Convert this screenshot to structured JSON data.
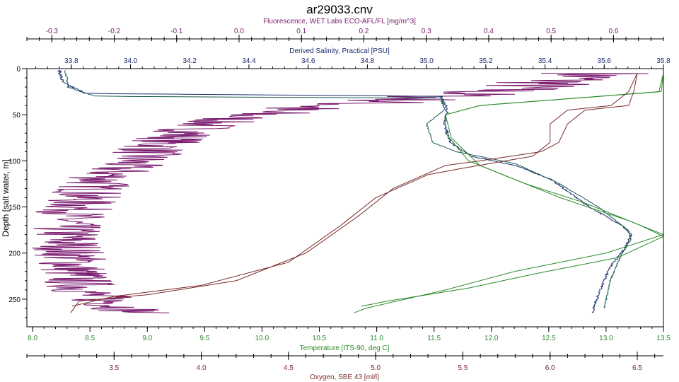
{
  "chart_data": {
    "type": "line",
    "title": "ar29033.cnv",
    "grid": false,
    "y_axis": {
      "label": "Depth [salt water, m]",
      "range": [
        0,
        280
      ],
      "ticks": [
        0,
        50,
        100,
        150,
        200,
        250
      ],
      "inverted": true
    },
    "x_axes": [
      {
        "id": "fluorescence",
        "label": "Fluorescence, WET Labs ECO-AFL/FL [mg/m^3]",
        "position": "top-1",
        "color": "#7a1a6e",
        "range": [
          -0.34,
          0.68
        ],
        "ticks": [
          -0.3,
          -0.2,
          -0.1,
          0.0,
          0.1,
          0.2,
          0.3,
          0.4,
          0.5,
          0.6
        ],
        "tick_labels": [
          "-0.3",
          "-0.2",
          "-0.1",
          "0.0",
          "0.1",
          "0.2",
          "0.3",
          "0.4",
          "0.5",
          "0.6"
        ]
      },
      {
        "id": "salinity",
        "label": "Derived Salinity, Practical [PSU]",
        "position": "top-2",
        "color": "#1a2a6e",
        "range": [
          33.65,
          35.8
        ],
        "ticks": [
          33.8,
          34.0,
          34.2,
          34.4,
          34.6,
          34.8,
          35.0,
          35.2,
          35.4,
          35.6,
          35.8
        ],
        "tick_labels": [
          "33.8",
          "34.0",
          "34.2",
          "34.4",
          "34.6",
          "34.8",
          "35.0",
          "35.2",
          "35.4",
          "35.6",
          "35.8"
        ]
      },
      {
        "id": "temperature",
        "label": "Temperature [ITS-90, deg C]",
        "position": "bottom-1",
        "color": "#2a8a2a",
        "range": [
          7.95,
          13.5
        ],
        "ticks": [
          8.0,
          8.5,
          9.0,
          9.5,
          10.0,
          10.5,
          11.0,
          11.5,
          12.0,
          12.5,
          13.0,
          13.5
        ],
        "tick_labels": [
          "8.0",
          "8.5",
          "9.0",
          "9.5",
          "10.0",
          "10.5",
          "11.0",
          "11.5",
          "12.0",
          "12.5",
          "13.0",
          "13.5"
        ]
      },
      {
        "id": "oxygen",
        "label": "Oxygen, SBE 43 [ml/l]",
        "position": "bottom-2",
        "color": "#7a2a2a",
        "range": [
          3.0,
          6.65
        ],
        "ticks": [
          3.5,
          4.0,
          4.5,
          5.0,
          5.5,
          6.0,
          6.5
        ],
        "tick_labels": [
          "3.5",
          "4.0",
          "4.5",
          "5.0",
          "5.5",
          "6.0",
          "6.5"
        ]
      }
    ],
    "series": [
      {
        "axis": "fluorescence",
        "color": "#7a1a6e",
        "noise": 0.06,
        "points": [
          [
            0.58,
            5
          ],
          [
            0.5,
            15
          ],
          [
            0.4,
            25
          ],
          [
            0.25,
            35
          ],
          [
            0.05,
            45
          ],
          [
            -0.05,
            60
          ],
          [
            -0.12,
            80
          ],
          [
            -0.17,
            100
          ],
          [
            -0.22,
            120
          ],
          [
            -0.25,
            140
          ],
          [
            -0.28,
            170
          ],
          [
            -0.27,
            200
          ],
          [
            -0.26,
            230
          ],
          [
            -0.24,
            245
          ],
          [
            -0.2,
            255
          ],
          [
            -0.16,
            265
          ]
        ]
      },
      {
        "axis": "salinity",
        "color": "#1a2a6e",
        "noise": 0.004,
        "points": [
          [
            33.76,
            2
          ],
          [
            33.77,
            15
          ],
          [
            33.85,
            27
          ],
          [
            35.05,
            30
          ],
          [
            35.07,
            45
          ],
          [
            35.06,
            60
          ],
          [
            35.08,
            80
          ],
          [
            35.15,
            95
          ],
          [
            35.3,
            105
          ],
          [
            35.42,
            120
          ],
          [
            35.55,
            150
          ],
          [
            35.66,
            170
          ],
          [
            35.69,
            180
          ],
          [
            35.67,
            195
          ],
          [
            35.62,
            215
          ],
          [
            35.58,
            245
          ],
          [
            35.56,
            265
          ]
        ]
      },
      {
        "axis": "salinity",
        "color": "#1a5a50",
        "noise": 0.002,
        "points": [
          [
            33.78,
            2
          ],
          [
            33.79,
            20
          ],
          [
            33.88,
            30
          ],
          [
            35.05,
            32
          ],
          [
            35.06,
            45
          ],
          [
            35.0,
            60
          ],
          [
            35.02,
            80
          ],
          [
            35.1,
            90
          ],
          [
            35.3,
            103
          ],
          [
            35.45,
            125
          ],
          [
            35.58,
            150
          ],
          [
            35.68,
            175
          ],
          [
            35.69,
            185
          ],
          [
            35.66,
            200
          ],
          [
            35.62,
            230
          ],
          [
            35.6,
            260
          ]
        ]
      },
      {
        "axis": "temperature",
        "color": "#2a8a2a",
        "noise": 0.0,
        "points": [
          [
            13.5,
            5
          ],
          [
            13.48,
            25
          ],
          [
            11.9,
            40
          ],
          [
            11.6,
            50
          ],
          [
            11.6,
            70
          ],
          [
            11.8,
            100
          ],
          [
            12.2,
            120
          ],
          [
            12.6,
            140
          ],
          [
            13.2,
            165
          ],
          [
            13.5,
            180
          ],
          [
            13.0,
            200
          ],
          [
            12.2,
            220
          ],
          [
            11.6,
            240
          ],
          [
            10.9,
            260
          ],
          [
            10.8,
            265
          ]
        ]
      },
      {
        "axis": "temperature",
        "color": "#2a8a2a",
        "noise": 0.0,
        "points": [
          [
            13.5,
            5
          ],
          [
            13.46,
            25
          ],
          [
            11.9,
            40
          ],
          [
            11.6,
            50
          ],
          [
            11.65,
            75
          ],
          [
            11.9,
            105
          ],
          [
            12.3,
            125
          ],
          [
            12.8,
            145
          ],
          [
            13.3,
            170
          ],
          [
            13.5,
            182
          ],
          [
            13.1,
            205
          ],
          [
            12.4,
            222
          ],
          [
            11.8,
            238
          ],
          [
            11.1,
            252
          ],
          [
            10.85,
            258
          ]
        ]
      },
      {
        "axis": "oxygen",
        "color": "#7a2a2a",
        "noise": 0.0,
        "points": [
          [
            6.5,
            5
          ],
          [
            6.48,
            25
          ],
          [
            6.45,
            40
          ],
          [
            6.2,
            45
          ],
          [
            6.1,
            60
          ],
          [
            6.05,
            80
          ],
          [
            5.95,
            90
          ],
          [
            5.6,
            100
          ],
          [
            5.4,
            105
          ],
          [
            5.1,
            130
          ],
          [
            4.9,
            160
          ],
          [
            4.6,
            200
          ],
          [
            4.2,
            230
          ],
          [
            3.7,
            245
          ],
          [
            3.3,
            252
          ],
          [
            3.25,
            265
          ]
        ]
      },
      {
        "axis": "oxygen",
        "color": "#7a2a2a",
        "noise": 0.0,
        "points": [
          [
            6.5,
            5
          ],
          [
            6.45,
            25
          ],
          [
            6.35,
            40
          ],
          [
            6.1,
            45
          ],
          [
            6.0,
            60
          ],
          [
            6.0,
            80
          ],
          [
            5.9,
            95
          ],
          [
            5.5,
            108
          ],
          [
            5.3,
            115
          ],
          [
            5.0,
            140
          ],
          [
            4.8,
            170
          ],
          [
            4.5,
            210
          ],
          [
            4.0,
            235
          ],
          [
            3.5,
            247
          ],
          [
            3.25,
            258
          ]
        ]
      }
    ]
  }
}
